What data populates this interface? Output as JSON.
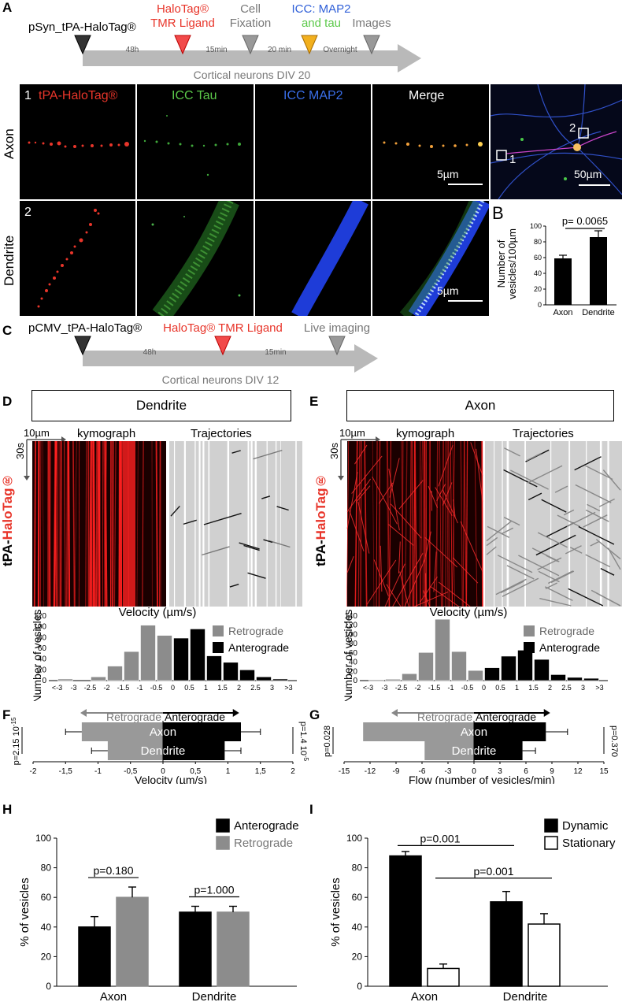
{
  "panel_letters": {
    "A": "A",
    "B": "B",
    "C": "C",
    "D": "D",
    "E": "E",
    "F": "F",
    "G": "G",
    "H": "H",
    "I": "I"
  },
  "timeline_A": {
    "construct": "pSyn_tPA-HaloTag®",
    "step1_line1": "HaloTag®",
    "step1_line2": "TMR Ligand",
    "step2_line1": "Cell",
    "step2_line2": "Fixation",
    "step3_line1": "ICC: MAP2",
    "step3_line2": "and tau",
    "step4": "Images",
    "interval1": "48h",
    "interval2": "15min",
    "interval3": "20 min",
    "interval4": "Overnight",
    "caption": "Cortical neurons DIV 20"
  },
  "micro": {
    "col_headers": [
      "tPA-HaloTag®",
      "ICC Tau",
      "ICC MAP2",
      "Merge"
    ],
    "row1_label": "Axon",
    "row2_label": "Dendrite",
    "row1_number": "1",
    "row2_number": "2",
    "scale_small": "5µm",
    "scale_large": "50µm",
    "overview_box1": "1",
    "overview_box2": "2",
    "colors": {
      "red": "#e8352a",
      "green": "#5cc94a",
      "blue": "#3a6ee8",
      "white": "#ffffff"
    }
  },
  "panel_B": {
    "pvalue": "p= 0.0065",
    "ylabel_line1": "Number of",
    "ylabel_line2": "vesicles/100µm",
    "chart_data": {
      "type": "bar",
      "categories": [
        "Axon",
        "Dendrite"
      ],
      "values": [
        59,
        86
      ],
      "errors": [
        4,
        8
      ],
      "ylim": [
        0,
        100
      ],
      "yticks": [
        "0",
        "20",
        "40",
        "60",
        "80",
        "100"
      ]
    }
  },
  "timeline_C": {
    "construct": "pCMV_tPA-HaloTag®",
    "step1": "HaloTag® TMR Ligand",
    "step2": "Live imaging",
    "interval1": "48h",
    "interval2": "15min",
    "caption": "Cortical neurons DIV 12"
  },
  "panel_D": {
    "title": "Dendrite",
    "scale_x": "10µm",
    "scale_t": "30s",
    "kymo_label": "kymograph",
    "traj_label": "Trajectories",
    "side_label_prefix": "tPA-",
    "side_label_red": "HaloTag®"
  },
  "panel_E": {
    "title": "Axon",
    "scale_x": "10µm",
    "scale_t": "30s",
    "kymo_label": "kymograph",
    "traj_label": "Trajectories",
    "side_label_prefix": "tPA-",
    "side_label_red": "HaloTag®"
  },
  "hist_common": {
    "xlabel": "Velocity (µm/s)",
    "ylabel": "Number of vesicles",
    "legend_retro": "Retrograde",
    "legend_antero": "Anterograde",
    "categories": [
      "<-3",
      "-3",
      "-2.5",
      "-2",
      "-1.5",
      "-1",
      "-0.5",
      "0",
      "0.5",
      "1",
      "1.5",
      "2",
      "2.5",
      "3",
      ">3"
    ]
  },
  "chart_data": [
    {
      "id": "D_histogram",
      "type": "bar",
      "title": "Velocity (µm/s)",
      "ylabel": "Number of vesicles",
      "ylim": [
        0,
        120
      ],
      "yticks": [
        "0",
        "20",
        "40",
        "60",
        "80",
        "100",
        "120"
      ],
      "series": [
        {
          "name": "Retrograde",
          "values": [
            3,
            0,
            7,
            27,
            54,
            103,
            84
          ]
        },
        {
          "name": "Anterograde",
          "values": [
            79,
            96,
            46,
            34,
            20,
            7,
            3
          ]
        }
      ]
    },
    {
      "id": "E_histogram",
      "type": "bar",
      "title": "Velocity (µm/s)",
      "ylabel": "Number of vesicles",
      "ylim": [
        0,
        140
      ],
      "yticks": [
        "0",
        "20",
        "40",
        "60",
        "80",
        "100",
        "120",
        "140"
      ],
      "series": [
        {
          "name": "Retrograde",
          "values": [
            2,
            3,
            15,
            61,
            133,
            63,
            22
          ]
        },
        {
          "name": "Anterograde",
          "values": [
            28,
            53,
            66,
            46,
            13,
            7,
            5
          ]
        }
      ]
    },
    {
      "id": "F_velocity",
      "type": "bar",
      "xlabel": "Velocity (µm/s)",
      "xlim": [
        -2,
        2
      ],
      "xticks": [
        "-2",
        "-1,5",
        "-1",
        "-0,5",
        "0",
        "0,5",
        "1",
        "1,5",
        "2"
      ],
      "rows": [
        {
          "name": "Axon",
          "retro": -1.25,
          "retro_err": 0.25,
          "antero": 1.2,
          "antero_err": 0.3
        },
        {
          "name": "Dendrite",
          "retro": -0.85,
          "retro_err": 0.25,
          "antero": 0.95,
          "antero_err": 0.25
        }
      ],
      "p_left": "p=2.15 10",
      "p_left_exp": "-15",
      "p_right": "p=1.4 10",
      "p_right_exp": "-5",
      "retro_label": "Retrograde",
      "antero_label": "Anterograde"
    },
    {
      "id": "G_flow",
      "type": "bar",
      "xlabel": "Flow (number of vesicles/min)",
      "xlim": [
        -15,
        15
      ],
      "xticks": [
        "-15",
        "-12",
        "-9",
        "-6",
        "-3",
        "0",
        "3",
        "6",
        "9",
        "12",
        "15"
      ],
      "rows": [
        {
          "name": "Axon",
          "retro": -12.8,
          "retro_err": 0,
          "antero": 8.3,
          "antero_err": 2.5
        },
        {
          "name": "Dendrite",
          "retro": -5.7,
          "retro_err": 0,
          "antero": 5.6,
          "antero_err": 1.5
        }
      ],
      "p_left": "p=0.028",
      "p_right": "p=0.370",
      "retro_label": "Retrograde",
      "antero_label": "Anterograde"
    },
    {
      "id": "H_percent",
      "type": "bar",
      "ylabel": "% of vesicles",
      "ylim": [
        0,
        100
      ],
      "yticks": [
        "0",
        "20",
        "40",
        "60",
        "80",
        "100"
      ],
      "categories": [
        "Axon",
        "Dendrite"
      ],
      "series": [
        {
          "name": "Anterograde",
          "values": [
            40,
            50
          ],
          "errors": [
            7,
            4
          ]
        },
        {
          "name": "Retrograde",
          "values": [
            60,
            50
          ],
          "errors": [
            7,
            4
          ]
        }
      ],
      "pvalues": [
        "p=0.180",
        "p=1.000"
      ]
    },
    {
      "id": "I_percent",
      "type": "bar",
      "ylabel": "% of vesicles",
      "ylim": [
        0,
        100
      ],
      "yticks": [
        "0",
        "20",
        "40",
        "60",
        "80",
        "100"
      ],
      "categories": [
        "Axon",
        "Dendrite"
      ],
      "series": [
        {
          "name": "Dynamic",
          "values": [
            88,
            57
          ],
          "errors": [
            3,
            7
          ]
        },
        {
          "name": "Stationary",
          "values": [
            12,
            42
          ],
          "errors": [
            3,
            7
          ]
        }
      ],
      "pvalues": [
        "p=0.001",
        "p=0.001"
      ]
    }
  ]
}
